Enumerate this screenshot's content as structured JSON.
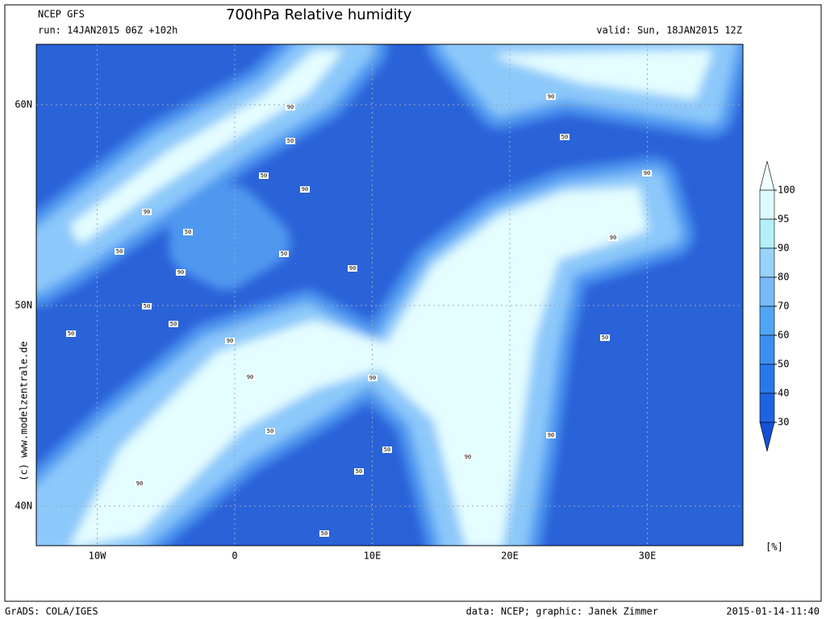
{
  "header": {
    "model": "NCEP GFS",
    "title": "700hPa Relative humidity",
    "run": "run: 14JAN2015 06Z +102h",
    "valid": "valid: Sun, 18JAN2015 12Z"
  },
  "map": {
    "lat_ticks": [
      {
        "value": 60,
        "label": "60N"
      },
      {
        "value": 50,
        "label": "50N"
      },
      {
        "value": 40,
        "label": "40N"
      }
    ],
    "lon_ticks": [
      {
        "value": -10,
        "label": "10W"
      },
      0,
      {
        "value": 10,
        "label": "10E"
      },
      {
        "value": 20,
        "label": "20E"
      },
      {
        "value": 30,
        "label": "30E"
      }
    ],
    "contour_labels": [
      90,
      50,
      50,
      90,
      90,
      50,
      50,
      90,
      50,
      90,
      50,
      50,
      50,
      90,
      90,
      90,
      50,
      50,
      50,
      90,
      90,
      50,
      90,
      90,
      50,
      90,
      90,
      50
    ]
  },
  "colorbar": {
    "levels": [
      100,
      95,
      90,
      80,
      70,
      60,
      50,
      40,
      30
    ],
    "colors": [
      "#f0ffff",
      "#dcfaff",
      "#b4f0fa",
      "#96d2fa",
      "#78b9fa",
      "#50a5f5",
      "#3c8ff0",
      "#2878eb",
      "#1e64e1",
      "#1450d2"
    ],
    "unit": "[%]"
  },
  "credit": "(c) www.modelzentrale.de",
  "footer": {
    "left": "GrADS: COLA/IGES",
    "center": "data: NCEP; graphic: Janek Zimmer",
    "right": "2015-01-14-11:40"
  }
}
